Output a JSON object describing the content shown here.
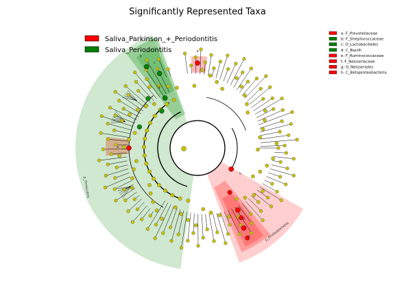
{
  "chart_data": {
    "type": "cladogram",
    "title": "Significantly Represented Taxa",
    "groups": [
      {
        "name": "Saliva_Parkinson_+_Periodontitis",
        "color": "#ff0000"
      },
      {
        "name": "Saliva_Periodontitis",
        "color": "#008000"
      }
    ],
    "highlighted_taxa": [
      {
        "key": "a",
        "label": "a: F_Prevotellaceae",
        "group": "Saliva_Parkinson_+_Periodontitis"
      },
      {
        "key": "b",
        "label": "b: F_Streptococcaceae",
        "group": "Saliva_Periodontitis"
      },
      {
        "key": "c",
        "label": "c: O_Lactobacillales",
        "group": "Saliva_Periodontitis"
      },
      {
        "key": "d",
        "label": "d: C_Bacilli",
        "group": "Saliva_Periodontitis"
      },
      {
        "key": "e",
        "label": "e: F_Ruminococcaceae",
        "group": "Saliva_Parkinson_+_Periodontitis"
      },
      {
        "key": "f",
        "label": "f: F_Neisseriaceae",
        "group": "Saliva_Parkinson_+_Periodontitis"
      },
      {
        "key": "g",
        "label": "g: O_Neisseriales",
        "group": "Saliva_Parkinson_+_Periodontitis"
      },
      {
        "key": "h",
        "label": "h: C_Betaproteobacteria",
        "group": "Saliva_Parkinson_+_Periodontitis"
      }
    ],
    "phylum_labels": [
      "p_Firmicutes",
      "p_Proteobacteria"
    ]
  }
}
